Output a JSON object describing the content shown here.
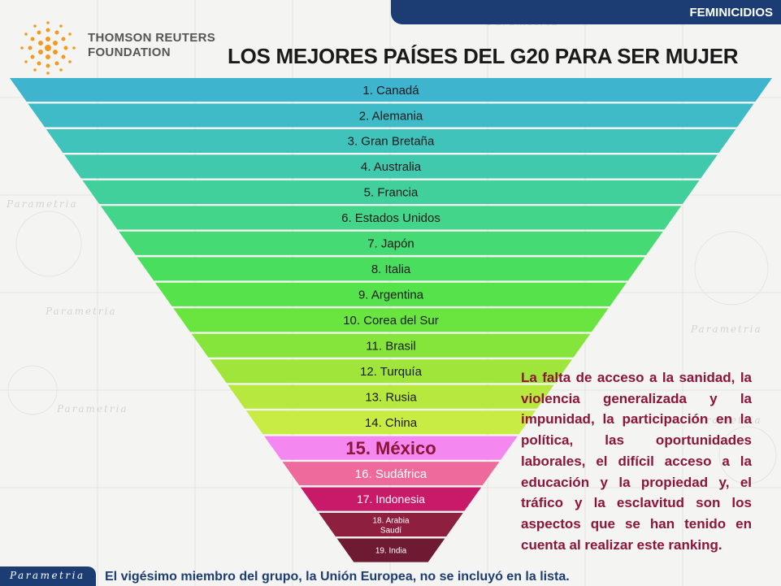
{
  "header": {
    "banner_label": "FEMINICIDIOS"
  },
  "org": {
    "line1": "THOMSON REUTERS",
    "line2": "FOUNDATION"
  },
  "watermark": "Parametria",
  "chart_data": {
    "type": "table",
    "title": "LOS MEJORES PAÍSES DEL G20 PARA SER MUJER",
    "rows": [
      {
        "label": "1. Canadá",
        "color": "#3fb4cf"
      },
      {
        "label": "2. Alemania",
        "color": "#3ebbc6"
      },
      {
        "label": "3. Gran Bretaña",
        "color": "#3fc3bb"
      },
      {
        "label": "4. Australia",
        "color": "#40c9ad"
      },
      {
        "label": "5. Francia",
        "color": "#41cf9c"
      },
      {
        "label": "6. Estados Unidos",
        "color": "#43d58a"
      },
      {
        "label": "7. Japón",
        "color": "#46da75"
      },
      {
        "label": "8. Italia",
        "color": "#4ade5f"
      },
      {
        "label": "9. Argentina",
        "color": "#55e24b"
      },
      {
        "label": "10. Corea del Sur",
        "color": "#6ae540"
      },
      {
        "label": "11. Brasil",
        "color": "#86e53a"
      },
      {
        "label": "12. Turquía",
        "color": "#a0e63a"
      },
      {
        "label": "13. Rusia",
        "color": "#b6e83d"
      },
      {
        "label": "14. China",
        "color": "#c9ec44"
      },
      {
        "label": "15. México",
        "color": "#f487f0",
        "highlight": true
      },
      {
        "label": "16. Sudáfrica",
        "color": "#ee6a9c"
      },
      {
        "label": "17. Indonesia",
        "color": "#c91a6a"
      },
      {
        "label": "18. Arabia Saudí",
        "lines": [
          "18. Arabia",
          "Saudí"
        ],
        "color": "#8e1f3f"
      },
      {
        "label": "19. India",
        "color": "#6e1a32"
      }
    ]
  },
  "note": "La falta de acceso a la sanidad, la violencia generalizada y la impunidad, la participación en la política, las oportunidades laborales, el difícil acceso a  la educación y la propiedad y, el tráfico y la esclavitud son los aspectos que se han tenido en cuenta al realizar este ranking.",
  "footer": {
    "badge": "Parametria",
    "note": "El vigésimo miembro del grupo, la Unión Europea, no se incluyó en la lista."
  }
}
